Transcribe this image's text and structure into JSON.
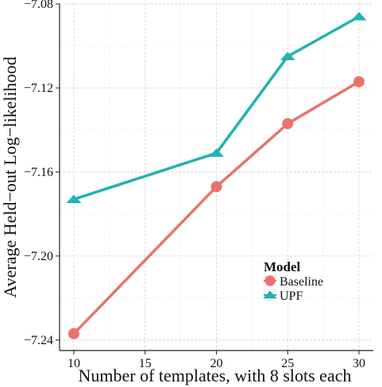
{
  "chart_data": {
    "type": "line",
    "xlabel": "Number of templates, with 8 slots each",
    "ylabel": "Average Held−out Log−likelihood",
    "xlim": [
      9,
      31
    ],
    "ylim": [
      -7.245,
      -7.08
    ],
    "x_ticks": [
      10,
      15,
      20,
      25,
      30
    ],
    "y_ticks": [
      -7.24,
      -7.2,
      -7.16,
      -7.12,
      -7.08
    ],
    "x_tick_labels": [
      "10",
      "15",
      "20",
      "25",
      "30"
    ],
    "y_tick_labels": [
      "−7.24",
      "−7.20",
      "−7.16",
      "−7.12",
      "−7.08"
    ],
    "grid": true,
    "legend": {
      "title": "Model",
      "position": "bottom-right"
    },
    "series": [
      {
        "name": "Baseline",
        "color": "#e8736d",
        "marker": "circle",
        "x": [
          10,
          20,
          25,
          30
        ],
        "y": [
          -7.237,
          -7.167,
          -7.137,
          -7.117
        ]
      },
      {
        "name": "UPF",
        "color": "#23b1b1",
        "marker": "triangle",
        "x": [
          10,
          20,
          25,
          30
        ],
        "y": [
          -7.173,
          -7.151,
          -7.105,
          -7.086
        ]
      }
    ]
  }
}
